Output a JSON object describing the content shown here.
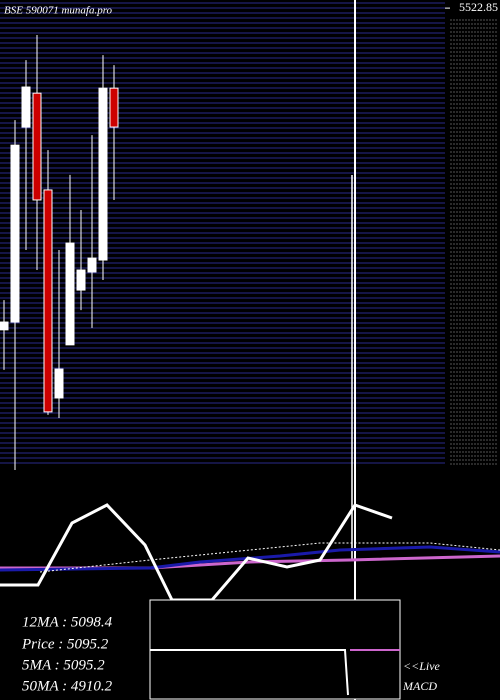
{
  "chart_data": {
    "type": "candlestick",
    "title": "BSE 590071 munafa.pro",
    "ylim": [
      3862,
      5552
    ],
    "yticks": [
      5522.85
    ],
    "up_color": "#ffffff",
    "down_color": "#cc0000",
    "open": [
      4366,
      4394,
      5095,
      5217,
      4869,
      4121,
      4312,
      4509,
      4574,
      4617,
      5235
    ],
    "high": [
      4473,
      5120,
      5336,
      5426,
      5012,
      4653,
      4923,
      4797,
      5066,
      5354,
      5318
    ],
    "low": [
      4222,
      3862,
      4653,
      4581,
      4060,
      4049,
      4312,
      4437,
      4373,
      4545,
      4833
    ],
    "close": [
      4394,
      5030,
      5239,
      4833,
      4071,
      4225,
      4678,
      4581,
      4624,
      5235,
      5095.2
    ],
    "stats": [
      "12MA : 5098.4",
      "Price  : 5095.2",
      "5MA : 5095.2",
      "50MA : 4910.2"
    ],
    "live": "<<Live",
    "panel_label": "MACD"
  }
}
